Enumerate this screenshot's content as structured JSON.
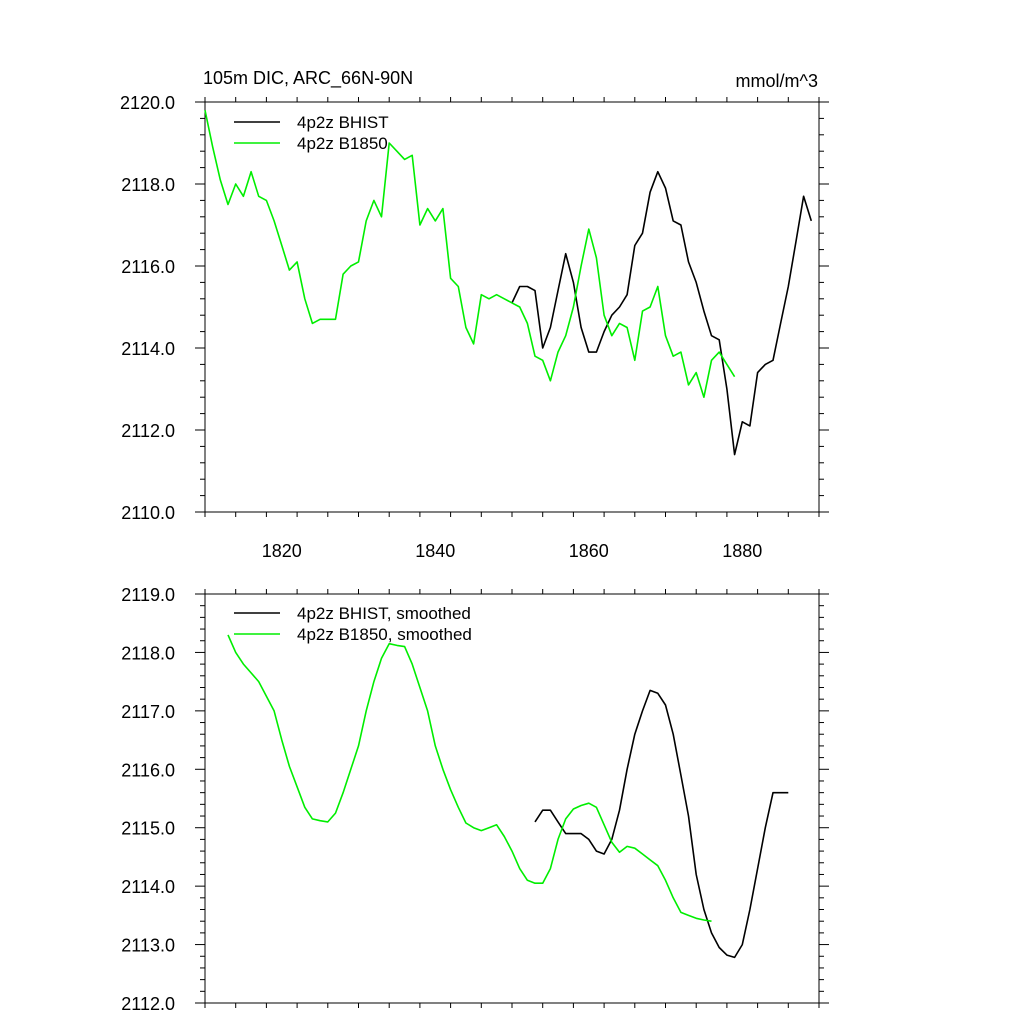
{
  "colors": {
    "bhist": "#000000",
    "b1850": "#00ee00",
    "axis": "#000000"
  },
  "chart_data": [
    {
      "type": "line",
      "title": "105m DIC, ARC_66N-90N",
      "units": "mmol/m^3",
      "xlim": [
        1810,
        1890
      ],
      "ylim": [
        2110,
        2120
      ],
      "yticks": [
        "2110.0",
        "2112.0",
        "2114.0",
        "2116.0",
        "2118.0",
        "2120.0"
      ],
      "xticks": [
        "1820",
        "1840",
        "1860",
        "1880"
      ],
      "legend_position": "top-left",
      "series": [
        {
          "name": "4p2z BHIST",
          "color": "#000000",
          "x": [
            1850,
            1851,
            1852,
            1853,
            1854,
            1855,
            1856,
            1857,
            1858,
            1859,
            1860,
            1861,
            1862,
            1863,
            1864,
            1865,
            1866,
            1867,
            1868,
            1869,
            1870,
            1871,
            1872,
            1873,
            1874,
            1875,
            1876,
            1877,
            1878,
            1879,
            1880,
            1881,
            1882,
            1883,
            1884,
            1885,
            1886,
            1887,
            1888,
            1889
          ],
          "y": [
            2115.1,
            2115.5,
            2115.5,
            2115.4,
            2114.0,
            2114.5,
            2115.4,
            2116.3,
            2115.6,
            2114.5,
            2113.9,
            2113.9,
            2114.4,
            2114.8,
            2115.0,
            2115.3,
            2116.5,
            2116.8,
            2117.8,
            2118.3,
            2117.9,
            2117.1,
            2117.0,
            2116.1,
            2115.6,
            2114.9,
            2114.3,
            2114.2,
            2113.0,
            2111.4,
            2112.2,
            2112.1,
            2113.4,
            2113.6,
            2113.7,
            2114.6,
            2115.5,
            2116.6,
            2117.7,
            2117.1
          ]
        },
        {
          "name": "4p2z B1850",
          "color": "#00ee00",
          "x": [
            1810,
            1811,
            1812,
            1813,
            1814,
            1815,
            1816,
            1817,
            1818,
            1819,
            1820,
            1821,
            1822,
            1823,
            1824,
            1825,
            1826,
            1827,
            1828,
            1829,
            1830,
            1831,
            1832,
            1833,
            1834,
            1835,
            1836,
            1837,
            1838,
            1839,
            1840,
            1841,
            1842,
            1843,
            1844,
            1845,
            1846,
            1847,
            1848,
            1849,
            1850,
            1851,
            1852,
            1853,
            1854,
            1855,
            1856,
            1857,
            1858,
            1859,
            1860,
            1861,
            1862,
            1863,
            1864,
            1865,
            1866,
            1867,
            1868,
            1869,
            1870,
            1871,
            1872,
            1873,
            1874,
            1875,
            1876,
            1877,
            1878,
            1879
          ],
          "y": [
            2119.8,
            2118.9,
            2118.1,
            2117.5,
            2118.0,
            2117.7,
            2118.3,
            2117.7,
            2117.6,
            2117.1,
            2116.5,
            2115.9,
            2116.1,
            2115.2,
            2114.6,
            2114.7,
            2114.7,
            2114.7,
            2115.8,
            2116.0,
            2116.1,
            2117.1,
            2117.6,
            2117.2,
            2119.0,
            2118.8,
            2118.6,
            2118.7,
            2117.0,
            2117.4,
            2117.1,
            2117.4,
            2115.7,
            2115.5,
            2114.5,
            2114.1,
            2115.3,
            2115.2,
            2115.3,
            2115.2,
            2115.1,
            2115.0,
            2114.6,
            2113.8,
            2113.7,
            2113.2,
            2113.9,
            2114.3,
            2115.0,
            2116.0,
            2116.9,
            2116.2,
            2114.8,
            2114.3,
            2114.6,
            2114.5,
            2113.7,
            2114.9,
            2115.0,
            2115.5,
            2114.3,
            2113.8,
            2113.9,
            2113.1,
            2113.4,
            2112.8,
            2113.7,
            2113.9,
            2113.6,
            2113.3
          ]
        }
      ]
    },
    {
      "type": "line",
      "title": "",
      "xlim": [
        1810,
        1890
      ],
      "ylim": [
        2112,
        2119
      ],
      "yticks": [
        "2112.0",
        "2113.0",
        "2114.0",
        "2115.0",
        "2116.0",
        "2117.0",
        "2118.0",
        "2119.0"
      ],
      "xticks": [],
      "legend_position": "top-left",
      "series": [
        {
          "name": "4p2z BHIST, smoothed",
          "color": "#000000",
          "x": [
            1853,
            1854,
            1855,
            1856,
            1857,
            1858,
            1859,
            1860,
            1861,
            1862,
            1863,
            1864,
            1865,
            1866,
            1867,
            1868,
            1869,
            1870,
            1871,
            1872,
            1873,
            1874,
            1875,
            1876,
            1877,
            1878,
            1879,
            1880,
            1881,
            1882,
            1883,
            1884,
            1885,
            1886
          ],
          "y": [
            2115.1,
            2115.3,
            2115.3,
            2115.1,
            2114.9,
            2114.9,
            2114.9,
            2114.8,
            2114.6,
            2114.55,
            2114.8,
            2115.3,
            2116.0,
            2116.6,
            2117.0,
            2117.35,
            2117.3,
            2117.1,
            2116.6,
            2115.9,
            2115.2,
            2114.2,
            2113.6,
            2113.2,
            2112.95,
            2112.82,
            2112.78,
            2113.0,
            2113.6,
            2114.3,
            2115.0,
            2115.6,
            2115.6,
            2115.6
          ],
          "x_note": "ends 1886"
        },
        {
          "name": "4p2z B1850, smoothed",
          "color": "#00ee00",
          "x": [
            1813,
            1814,
            1815,
            1816,
            1817,
            1818,
            1819,
            1820,
            1821,
            1822,
            1823,
            1824,
            1825,
            1826,
            1827,
            1828,
            1829,
            1830,
            1831,
            1832,
            1833,
            1834,
            1835,
            1836,
            1837,
            1838,
            1839,
            1840,
            1841,
            1842,
            1843,
            1844,
            1845,
            1846,
            1847,
            1848,
            1849,
            1850,
            1851,
            1852,
            1853,
            1854,
            1855,
            1856,
            1857,
            1858,
            1859,
            1860,
            1861,
            1862,
            1863,
            1864,
            1865,
            1866,
            1867,
            1868,
            1869,
            1870,
            1871,
            1872,
            1873,
            1874,
            1875,
            1876
          ],
          "y": [
            2118.3,
            2118.0,
            2117.8,
            2117.65,
            2117.5,
            2117.25,
            2117.0,
            2116.5,
            2116.05,
            2115.7,
            2115.35,
            2115.15,
            2115.12,
            2115.1,
            2115.25,
            2115.6,
            2116.0,
            2116.4,
            2117.0,
            2117.5,
            2117.9,
            2118.15,
            2118.12,
            2118.1,
            2117.8,
            2117.4,
            2117.0,
            2116.4,
            2116.0,
            2115.65,
            2115.35,
            2115.08,
            2115.0,
            2114.95,
            2115.0,
            2115.05,
            2114.85,
            2114.6,
            2114.3,
            2114.1,
            2114.05,
            2114.05,
            2114.3,
            2114.8,
            2115.15,
            2115.32,
            2115.38,
            2115.42,
            2115.35,
            2115.05,
            2114.75,
            2114.58,
            2114.68,
            2114.65,
            2114.55,
            2114.45,
            2114.35,
            2114.1,
            2113.8,
            2113.55,
            2113.5,
            2113.45,
            2113.42,
            2113.4
          ]
        }
      ]
    }
  ]
}
